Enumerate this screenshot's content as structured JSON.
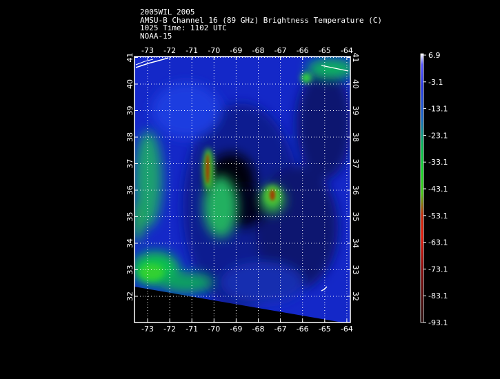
{
  "header": {
    "line1": "2005WIL 2005",
    "line2": "AMSU-B Channel 16 (89 GHz) Brightness Temperature (C)",
    "line3": "1025 Time: 1102 UTC",
    "line4": "NOAA-15"
  },
  "axes": {
    "lon_ticks": [
      "-73",
      "-72",
      "-71",
      "-70",
      "-69",
      "-68",
      "-67",
      "-66",
      "-65",
      "-64"
    ],
    "lat_ticks": [
      "32",
      "33",
      "34",
      "35",
      "36",
      "37",
      "38",
      "39",
      "40",
      "41"
    ]
  },
  "colorbar": {
    "labels": [
      "6.9",
      "-3.1",
      "-13.1",
      "-23.1",
      "-33.1",
      "-43.1",
      "-53.1",
      "-63.1",
      "-73.1",
      "-83.1",
      "-93.1"
    ]
  }
}
